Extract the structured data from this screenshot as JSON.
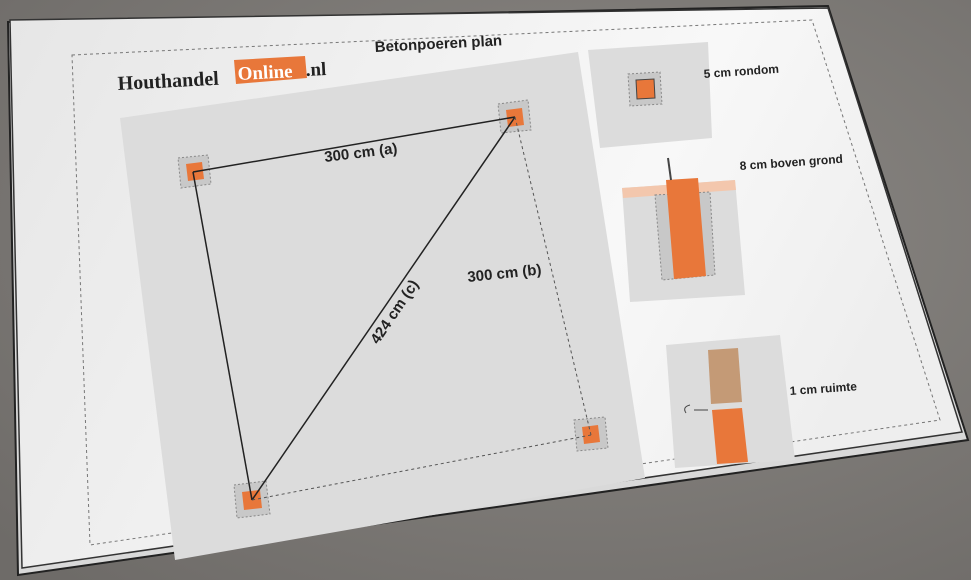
{
  "logo": {
    "part1": "Houthandel",
    "part2": "Online",
    "part3": ".nl"
  },
  "title": "Betonpoeren plan",
  "plan": {
    "side_a": "300 cm (a)",
    "side_b": "300 cm (b)",
    "diagonal": "424 cm (c)"
  },
  "details": [
    "5 cm rondom",
    "8 cm boven grond",
    "1 cm ruimte"
  ]
}
